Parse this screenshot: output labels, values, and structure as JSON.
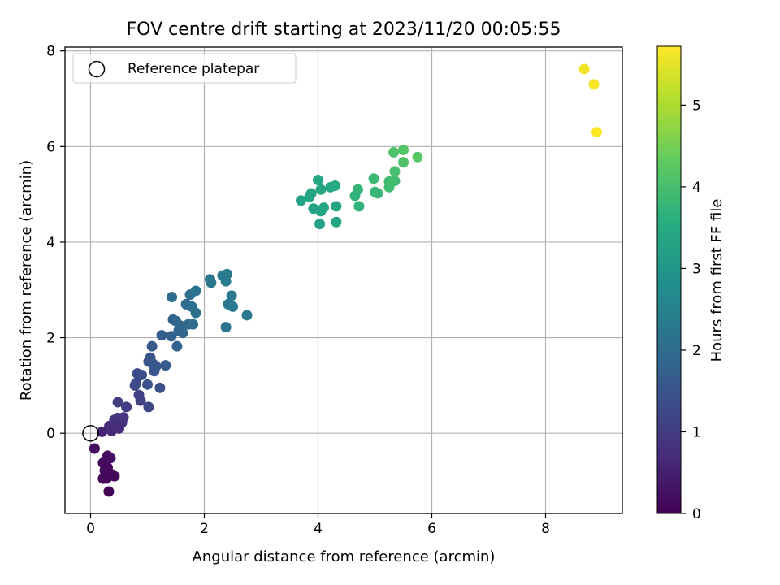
{
  "chart_data": {
    "type": "scatter",
    "title": "FOV centre drift starting at 2023/11/20 00:05:55",
    "xlabel": "Angular distance from reference (arcmin)",
    "ylabel": "Rotation from reference (arcmin)",
    "xlim": [
      -0.45,
      9.35
    ],
    "ylim": [
      -1.68,
      8.08
    ],
    "xticks": [
      0,
      2,
      4,
      6,
      8
    ],
    "yticks": [
      0,
      2,
      4,
      6,
      8
    ],
    "grid": true,
    "legend": {
      "location": "upper-left",
      "entries": [
        {
          "label": "Reference platepar",
          "marker": "open-circle"
        }
      ]
    },
    "reference_point": {
      "x": 0,
      "y": 0
    },
    "colorbar": {
      "label": "Hours from first FF file",
      "colormap": "viridis",
      "range": [
        0,
        5.72
      ],
      "ticks": [
        0,
        1,
        2,
        3,
        4,
        5
      ]
    },
    "series": [
      {
        "points": [
          {
            "x": 0.07,
            "y": -0.32,
            "c": 0.2
          },
          {
            "x": 0.2,
            "y": 0.03,
            "c": 0.55
          },
          {
            "x": 0.22,
            "y": -0.62,
            "c": 0.15
          },
          {
            "x": 0.25,
            "y": -0.78,
            "c": 0.1
          },
          {
            "x": 0.22,
            "y": -0.95,
            "c": 0.1
          },
          {
            "x": 0.3,
            "y": -0.47,
            "c": 0.2
          },
          {
            "x": 0.35,
            "y": -0.52,
            "c": 0.25
          },
          {
            "x": 0.3,
            "y": -0.72,
            "c": 0.15
          },
          {
            "x": 0.35,
            "y": -0.85,
            "c": 0.15
          },
          {
            "x": 0.42,
            "y": -0.9,
            "c": 0.1
          },
          {
            "x": 0.32,
            "y": -1.22,
            "c": 0.05
          },
          {
            "x": 0.28,
            "y": -0.95,
            "c": 0.1
          },
          {
            "x": 0.33,
            "y": 0.15,
            "c": 0.7
          },
          {
            "x": 0.37,
            "y": 0.05,
            "c": 0.65
          },
          {
            "x": 0.42,
            "y": 0.28,
            "c": 0.8
          },
          {
            "x": 0.48,
            "y": 0.32,
            "c": 0.85
          },
          {
            "x": 0.55,
            "y": 0.22,
            "c": 0.75
          },
          {
            "x": 0.5,
            "y": 0.1,
            "c": 0.7
          },
          {
            "x": 0.58,
            "y": 0.33,
            "c": 0.9
          },
          {
            "x": 0.63,
            "y": 0.55,
            "c": 1.0
          },
          {
            "x": 0.48,
            "y": 0.65,
            "c": 1.0
          },
          {
            "x": 0.85,
            "y": 0.8,
            "c": 1.1
          },
          {
            "x": 0.88,
            "y": 0.68,
            "c": 1.1
          },
          {
            "x": 1.02,
            "y": 0.55,
            "c": 1.2
          },
          {
            "x": 0.78,
            "y": 1.0,
            "c": 1.25
          },
          {
            "x": 0.8,
            "y": 1.05,
            "c": 1.25
          },
          {
            "x": 0.82,
            "y": 1.25,
            "c": 1.3
          },
          {
            "x": 0.9,
            "y": 1.22,
            "c": 1.35
          },
          {
            "x": 1.0,
            "y": 1.02,
            "c": 1.4
          },
          {
            "x": 1.02,
            "y": 1.5,
            "c": 1.45
          },
          {
            "x": 1.05,
            "y": 1.58,
            "c": 1.5
          },
          {
            "x": 1.1,
            "y": 1.45,
            "c": 1.5
          },
          {
            "x": 1.12,
            "y": 1.3,
            "c": 1.5
          },
          {
            "x": 1.15,
            "y": 1.4,
            "c": 1.55
          },
          {
            "x": 1.08,
            "y": 1.82,
            "c": 1.6
          },
          {
            "x": 1.22,
            "y": 0.95,
            "c": 1.4
          },
          {
            "x": 1.32,
            "y": 1.42,
            "c": 1.6
          },
          {
            "x": 1.25,
            "y": 2.05,
            "c": 1.7
          },
          {
            "x": 1.42,
            "y": 2.03,
            "c": 1.75
          },
          {
            "x": 1.45,
            "y": 2.38,
            "c": 1.8
          },
          {
            "x": 1.5,
            "y": 2.35,
            "c": 1.85
          },
          {
            "x": 1.52,
            "y": 1.82,
            "c": 1.8
          },
          {
            "x": 1.55,
            "y": 2.15,
            "c": 1.85
          },
          {
            "x": 1.58,
            "y": 2.25,
            "c": 1.9
          },
          {
            "x": 1.62,
            "y": 2.1,
            "c": 1.9
          },
          {
            "x": 1.43,
            "y": 2.85,
            "c": 2.0
          },
          {
            "x": 1.68,
            "y": 2.7,
            "c": 2.0
          },
          {
            "x": 1.72,
            "y": 2.28,
            "c": 1.95
          },
          {
            "x": 1.75,
            "y": 2.9,
            "c": 2.05
          },
          {
            "x": 1.78,
            "y": 2.65,
            "c": 2.05
          },
          {
            "x": 1.8,
            "y": 2.28,
            "c": 2.0
          },
          {
            "x": 1.85,
            "y": 2.52,
            "c": 2.1
          },
          {
            "x": 1.85,
            "y": 2.98,
            "c": 2.15
          },
          {
            "x": 2.1,
            "y": 3.22,
            "c": 2.2
          },
          {
            "x": 2.12,
            "y": 3.15,
            "c": 2.25
          },
          {
            "x": 2.32,
            "y": 3.3,
            "c": 2.3
          },
          {
            "x": 2.38,
            "y": 3.18,
            "c": 2.35
          },
          {
            "x": 2.4,
            "y": 3.33,
            "c": 2.35
          },
          {
            "x": 2.42,
            "y": 2.7,
            "c": 2.25
          },
          {
            "x": 2.48,
            "y": 2.88,
            "c": 2.3
          },
          {
            "x": 2.5,
            "y": 2.65,
            "c": 2.3
          },
          {
            "x": 2.38,
            "y": 2.22,
            "c": 2.2
          },
          {
            "x": 2.75,
            "y": 2.47,
            "c": 2.3
          },
          {
            "x": 3.7,
            "y": 4.87,
            "c": 3.3
          },
          {
            "x": 3.85,
            "y": 4.95,
            "c": 3.3
          },
          {
            "x": 3.88,
            "y": 5.02,
            "c": 3.35
          },
          {
            "x": 3.92,
            "y": 4.7,
            "c": 3.25
          },
          {
            "x": 4.0,
            "y": 5.3,
            "c": 3.4
          },
          {
            "x": 4.05,
            "y": 5.1,
            "c": 3.4
          },
          {
            "x": 4.05,
            "y": 4.65,
            "c": 3.3
          },
          {
            "x": 4.1,
            "y": 4.72,
            "c": 3.35
          },
          {
            "x": 4.03,
            "y": 4.38,
            "c": 3.25
          },
          {
            "x": 4.22,
            "y": 5.15,
            "c": 3.4
          },
          {
            "x": 4.3,
            "y": 5.18,
            "c": 3.45
          },
          {
            "x": 4.32,
            "y": 4.75,
            "c": 3.35
          },
          {
            "x": 4.32,
            "y": 4.42,
            "c": 3.3
          },
          {
            "x": 4.65,
            "y": 4.97,
            "c": 3.7
          },
          {
            "x": 4.7,
            "y": 5.1,
            "c": 3.75
          },
          {
            "x": 4.72,
            "y": 4.75,
            "c": 3.7
          },
          {
            "x": 4.98,
            "y": 5.33,
            "c": 3.85
          },
          {
            "x": 5.0,
            "y": 5.05,
            "c": 3.8
          },
          {
            "x": 5.05,
            "y": 5.02,
            "c": 3.8
          },
          {
            "x": 5.25,
            "y": 5.27,
            "c": 3.9
          },
          {
            "x": 5.25,
            "y": 5.15,
            "c": 3.9
          },
          {
            "x": 5.35,
            "y": 5.28,
            "c": 3.95
          },
          {
            "x": 5.35,
            "y": 5.48,
            "c": 4.0
          },
          {
            "x": 5.33,
            "y": 5.88,
            "c": 4.1
          },
          {
            "x": 5.5,
            "y": 5.93,
            "c": 4.15
          },
          {
            "x": 5.5,
            "y": 5.67,
            "c": 4.1
          },
          {
            "x": 5.75,
            "y": 5.78,
            "c": 4.2
          },
          {
            "x": 8.68,
            "y": 7.62,
            "c": 5.6
          },
          {
            "x": 8.85,
            "y": 7.3,
            "c": 5.65
          },
          {
            "x": 8.9,
            "y": 6.3,
            "c": 5.7
          }
        ]
      }
    ]
  }
}
